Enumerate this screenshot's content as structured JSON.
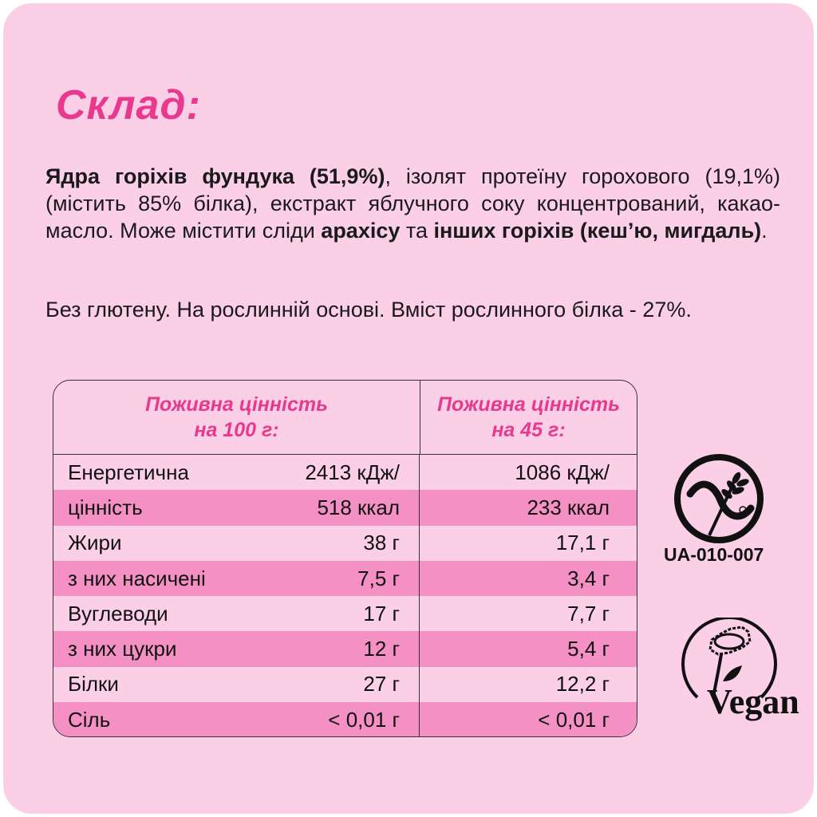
{
  "title": "Склад:",
  "ingredients": {
    "p1_bold": "Ядра горіхів фундука (51,9%)",
    "p1_text": ", ізолят протеїну горохового (19,1%) (містить 85% білка), екстракт яблучного соку концентрований, какао-масло. Може містити сліди ",
    "p1_bold2": "арахісу",
    "p1_text2": " та ",
    "p1_bold3": "інших горіхів (кеш’ю, мигдаль)",
    "p1_end": "."
  },
  "notes": "Без глютену. На рослинній основі. Вміст рослинного білка - 27%.",
  "table": {
    "header_100": "Поживна цінність на 100 г:",
    "header_45": "Поживна цінність на 45 г:",
    "rows": [
      {
        "label": "Енергетична",
        "v100": "2413 кДж/",
        "v45": "1086 кДж/"
      },
      {
        "label": "цінність",
        "v100": "518 ккал",
        "v45": "233 ккал"
      },
      {
        "label": "Жири",
        "v100": "38 г",
        "v45": "17,1 г"
      },
      {
        "label": "з них насичені",
        "v100": "7,5 г",
        "v45": "3,4 г"
      },
      {
        "label": "Вуглеводи",
        "v100": "17 г",
        "v45": "7,7 г"
      },
      {
        "label": "з них цукри",
        "v100": "12 г",
        "v45": "5,4 г"
      },
      {
        "label": "Білки",
        "v100": "27 г",
        "v45": "12,2 г"
      },
      {
        "label": "Сіль",
        "v100": "< 0,01 г",
        "v45": "< 0,01 г"
      }
    ]
  },
  "gluten_free_logo": {
    "icon": "crossed-grain-icon",
    "code": "UA-010-007"
  },
  "vegan_logo": {
    "icon": "vegan-sunflower-icon",
    "text": "Vegan"
  },
  "colors": {
    "accent": "#e8398f",
    "background": "#fbd0e6",
    "row_dark": "#f490c4"
  }
}
